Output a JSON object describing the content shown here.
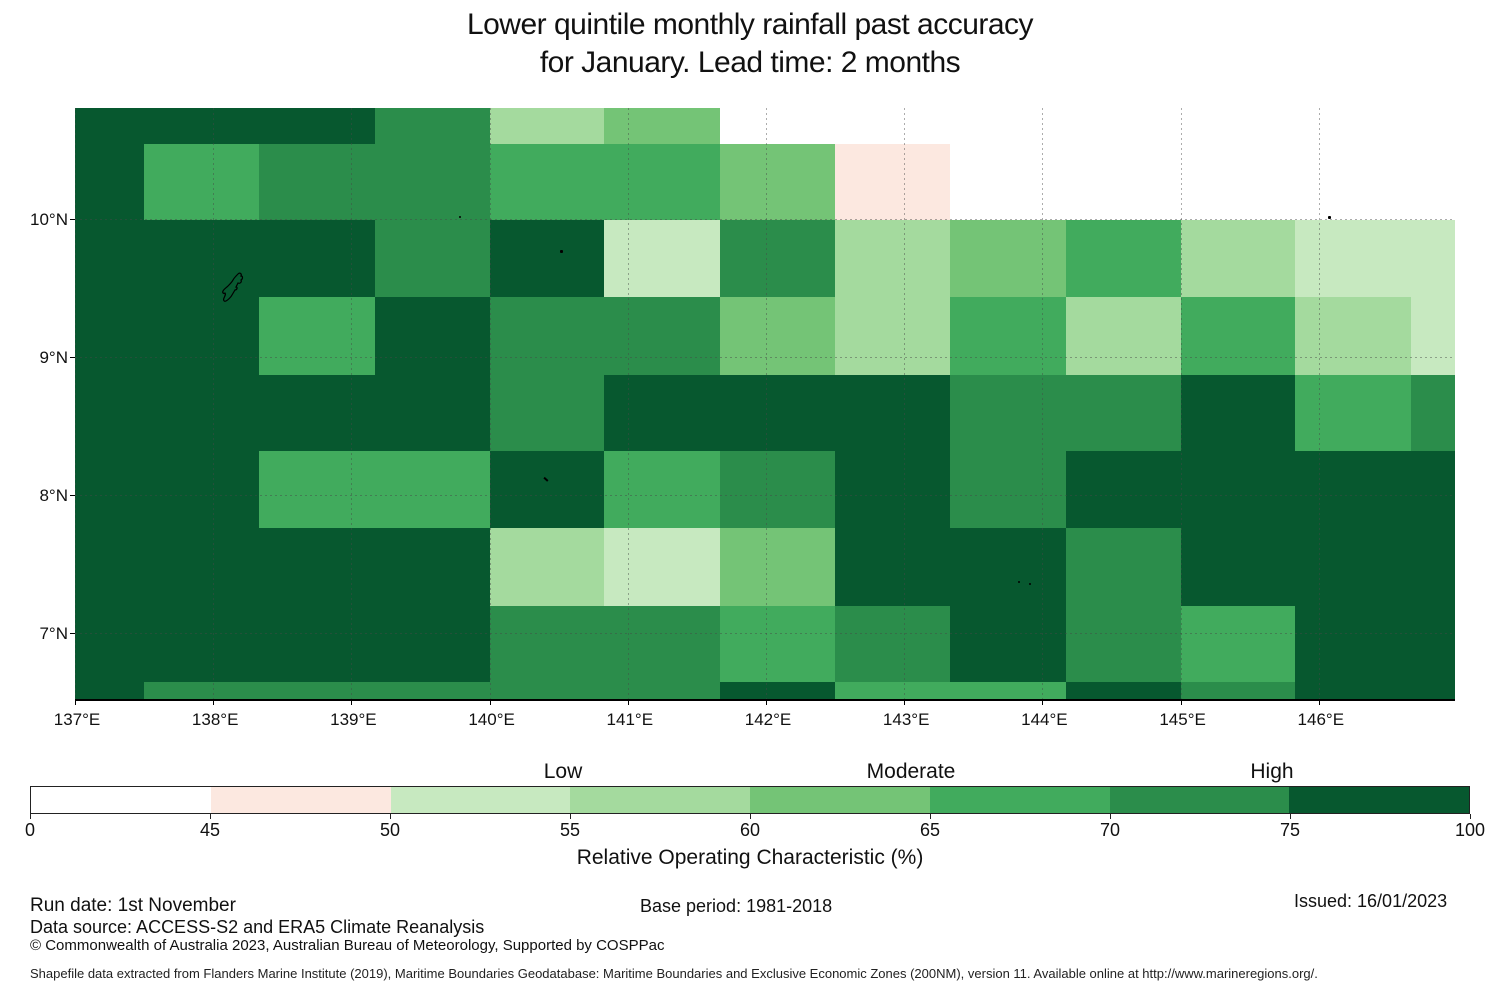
{
  "title": {
    "line1": "Lower quintile monthly rainfall past accuracy",
    "line2": "for January. Lead time: 2 months"
  },
  "chart_data": {
    "type": "heatmap",
    "x_axis": {
      "ticks": [
        "137°E",
        "138°E",
        "139°E",
        "140°E",
        "141°E",
        "142°E",
        "143°E",
        "144°E",
        "145°E",
        "146°E"
      ],
      "lons": [
        137,
        138,
        139,
        140,
        141,
        142,
        143,
        144,
        145,
        146
      ]
    },
    "y_axis": {
      "ticks": [
        "10°N",
        "9°N",
        "8°N",
        "7°N"
      ],
      "lats": [
        10,
        9,
        8,
        7
      ]
    },
    "x_range": [
      137.0,
      147.0
    ],
    "y_range": [
      6.52,
      10.8
    ],
    "grid_on": true,
    "lon_edges": [
      137.0,
      137.5,
      138.33,
      139.17,
      140.0,
      140.83,
      141.67,
      142.5,
      143.33,
      144.17,
      145.0,
      145.83,
      146.67,
      147.0
    ],
    "lat_edges": [
      10.8,
      10.54,
      9.99,
      9.43,
      8.87,
      8.32,
      7.76,
      7.2,
      6.65,
      6.52
    ],
    "bins": [
      {
        "range": "0-45",
        "color": "#ffffff"
      },
      {
        "range": "45-50",
        "color": "#fce8e0"
      },
      {
        "range": "50-55",
        "color": "#c7e9c0"
      },
      {
        "range": "55-60",
        "color": "#a4da9e"
      },
      {
        "range": "60-65",
        "color": "#74c476"
      },
      {
        "range": "65-70",
        "color": "#41ab5d"
      },
      {
        "range": "70-75",
        "color": "#2b8d4b"
      },
      {
        "range": "75-100",
        "color": "#07582f"
      }
    ],
    "grid": [
      [
        7,
        7,
        7,
        6,
        3,
        4,
        0,
        0,
        0,
        0,
        0,
        0,
        0
      ],
      [
        7,
        5,
        6,
        6,
        5,
        5,
        4,
        1,
        0,
        0,
        0,
        0,
        0
      ],
      [
        7,
        7,
        7,
        6,
        7,
        2,
        6,
        3,
        4,
        5,
        3,
        2,
        2
      ],
      [
        7,
        7,
        5,
        7,
        6,
        6,
        4,
        3,
        5,
        3,
        5,
        3,
        2
      ],
      [
        7,
        7,
        7,
        7,
        6,
        7,
        7,
        7,
        6,
        6,
        7,
        5,
        6
      ],
      [
        7,
        7,
        5,
        5,
        7,
        5,
        6,
        7,
        6,
        7,
        7,
        7,
        7
      ],
      [
        7,
        7,
        7,
        7,
        3,
        2,
        4,
        7,
        7,
        6,
        7,
        7,
        7
      ],
      [
        7,
        7,
        7,
        7,
        6,
        6,
        5,
        6,
        7,
        6,
        5,
        7,
        7
      ],
      [
        7,
        6,
        6,
        6,
        6,
        6,
        7,
        5,
        5,
        7,
        6,
        7,
        7
      ]
    ],
    "islands": [
      {
        "type": "outline",
        "lon": 138.15,
        "lat": 9.5,
        "w": 26,
        "h": 34
      },
      {
        "type": "dot",
        "lon": 139.78,
        "lat": 10.02,
        "size": 2
      },
      {
        "type": "dot",
        "lon": 140.51,
        "lat": 9.77,
        "size": 3
      },
      {
        "type": "dot",
        "lon": 146.07,
        "lat": 10.02,
        "size": 3
      },
      {
        "type": "dash",
        "lon": 140.4,
        "lat": 8.13,
        "size": 5
      },
      {
        "type": "dot",
        "lon": 143.82,
        "lat": 7.38,
        "size": 2
      },
      {
        "type": "dot",
        "lon": 143.9,
        "lat": 7.36,
        "size": 2
      }
    ]
  },
  "colorbar": {
    "zone_labels": [
      "Low",
      "Moderate",
      "High"
    ],
    "tick_values": [
      "0",
      "45",
      "50",
      "55",
      "60",
      "65",
      "70",
      "75",
      "100"
    ],
    "axis_label": "Relative Operating Characteristic (%)"
  },
  "footer": {
    "run_date": "Run date: 1st November",
    "base_period": "Base period: 1981-2018",
    "issued": "Issued: 16/01/2023",
    "data_source": "Data source: ACCESS-S2 and ERA5 Climate Reanalysis",
    "copyright": "© Commonwealth of Australia 2023, Australian Bureau of Meteorology, Supported by COSPPac",
    "shapefile": "Shapefile data extracted from Flanders Marine Institute (2019), Maritime Boundaries Geodatabase: Maritime Boundaries and Exclusive Economic Zones (200NM), version 11. Available online at http://www.marineregions.org/."
  }
}
